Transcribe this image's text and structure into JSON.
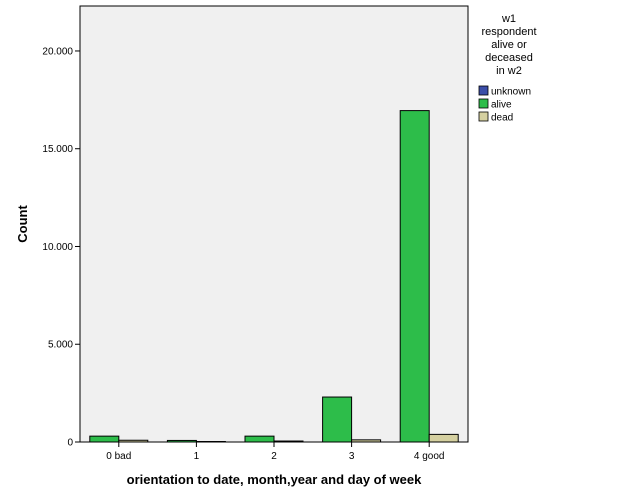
{
  "chart_data": {
    "type": "bar",
    "xlabel": "orientation to date, month,year and day of week",
    "ylabel": "Count",
    "categories": [
      "0 bad",
      "1",
      "2",
      "3",
      "4 good"
    ],
    "yticks": [
      {
        "value": 0,
        "label": "0"
      },
      {
        "value": 5000,
        "label": "5.000"
      },
      {
        "value": 10000,
        "label": "10.000"
      },
      {
        "value": 15000,
        "label": "15.000"
      },
      {
        "value": 20000,
        "label": "20.000"
      }
    ],
    "ylim": [
      0,
      22300
    ],
    "legend": {
      "title_lines": [
        "w1",
        "respondent",
        "alive or",
        "deceased",
        "in w2"
      ],
      "placement": "right"
    },
    "series": [
      {
        "name": "unknown",
        "color": "#3b4ea8",
        "values": [
          0,
          0,
          0,
          0,
          0
        ]
      },
      {
        "name": "alive",
        "color": "#2dbd4a",
        "values": [
          300,
          80,
          300,
          2300,
          16950
        ]
      },
      {
        "name": "dead",
        "color": "#d5d0a0",
        "values": [
          90,
          25,
          50,
          110,
          390
        ]
      }
    ],
    "plot_background": "#f0f0f0",
    "grid": false
  }
}
